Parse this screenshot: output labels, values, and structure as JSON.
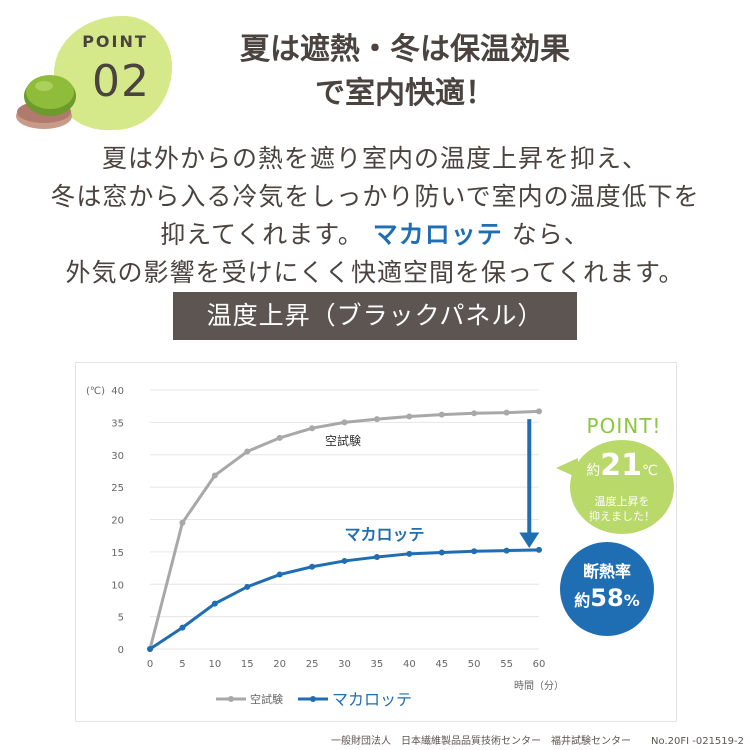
{
  "badge": {
    "label": "POINT",
    "number": "02"
  },
  "headline": {
    "line1": "夏は遮熱・冬は保温効果",
    "line2": "で室内快適！"
  },
  "body": {
    "line1": "夏は外からの熱を遮り室内の温度上昇を抑え、",
    "line2": "冬は窓から入る冷気をしっかり防いで室内の温度低下を",
    "line3_pre": "抑えてくれます。",
    "line3_brand": "マカロッテ",
    "line3_post": "なら、",
    "line4": "外気の影響を受けにくく快適空間を保ってくれます。"
  },
  "section_title": "温度上昇（ブラックパネル）",
  "colors": {
    "gray": "#a8a8a8",
    "blue": "#1f6db3",
    "green": "#8cc63f",
    "dark": "#5d5552"
  },
  "chart_data": {
    "type": "line",
    "x": [
      0,
      5,
      10,
      15,
      20,
      25,
      30,
      35,
      40,
      45,
      50,
      55,
      60
    ],
    "ylim": [
      0,
      40
    ],
    "xlim": [
      0,
      60
    ],
    "y_unit": "(℃)",
    "xlabel": "時間（分）",
    "x_ticks": [
      "0",
      "5",
      "10",
      "15",
      "20",
      "25",
      "30",
      "35",
      "40",
      "45",
      "50",
      "55",
      "60"
    ],
    "y_ticks": [
      "0",
      "5",
      "10",
      "15",
      "20",
      "25",
      "30",
      "35",
      "40"
    ],
    "grid": true,
    "legend_position": "bottom-left",
    "series": [
      {
        "name": "空試験",
        "values": [
          0,
          19.5,
          26.8,
          30.5,
          32.6,
          34.1,
          35.0,
          35.5,
          35.9,
          36.2,
          36.4,
          36.5,
          36.7
        ]
      },
      {
        "name": "マカロッテ",
        "values": [
          0,
          3.3,
          7.0,
          9.6,
          11.5,
          12.7,
          13.6,
          14.2,
          14.7,
          14.9,
          15.1,
          15.2,
          15.3
        ]
      }
    ]
  },
  "point_callout": {
    "title": "POINT!",
    "prefix": "約",
    "value": "21",
    "unit": "℃",
    "line1": "温度上昇を",
    "line2": "抑えました！"
  },
  "insulation": {
    "label": "断熱率",
    "prefix": "約",
    "value": "58",
    "unit": "%"
  },
  "footer": "一般財団法人　日本繊維製品品質技術センター　福井試験センター　　No.20FI -021519-2"
}
